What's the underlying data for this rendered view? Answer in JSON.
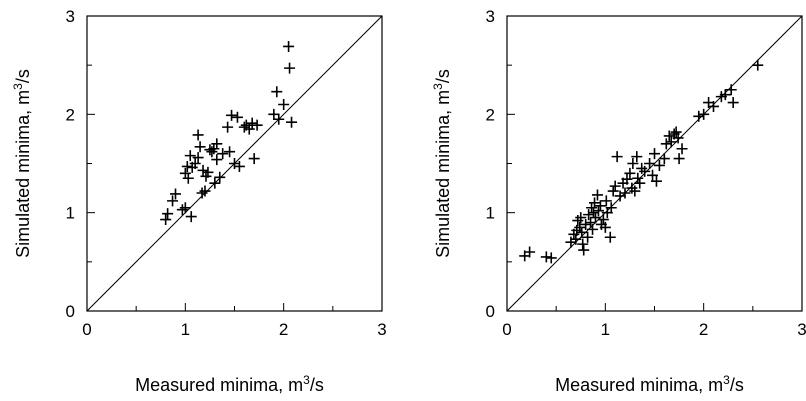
{
  "chart_data": [
    {
      "type": "scatter",
      "xlabel": "Measured minima, m³/s",
      "ylabel": "Simulated minima, m³/s",
      "xlim": [
        0,
        3
      ],
      "ylim": [
        0,
        3
      ],
      "xticks": [
        "0",
        "1",
        "2",
        "3"
      ],
      "yticks": [
        "0",
        "1",
        "2",
        "3"
      ],
      "reference_line": "1:1",
      "marker": "plus",
      "points": [
        [
          0.8,
          0.93
        ],
        [
          0.82,
          0.99
        ],
        [
          0.87,
          1.12
        ],
        [
          0.9,
          1.19
        ],
        [
          0.97,
          1.03
        ],
        [
          1.0,
          1.05
        ],
        [
          1.0,
          1.4
        ],
        [
          1.02,
          1.47
        ],
        [
          1.03,
          1.35
        ],
        [
          1.05,
          1.58
        ],
        [
          1.06,
          0.96
        ],
        [
          1.07,
          1.46
        ],
        [
          1.1,
          1.5
        ],
        [
          1.13,
          1.56
        ],
        [
          1.13,
          1.79
        ],
        [
          1.15,
          1.67
        ],
        [
          1.17,
          1.2
        ],
        [
          1.18,
          1.43
        ],
        [
          1.2,
          1.22
        ],
        [
          1.21,
          1.37
        ],
        [
          1.23,
          1.41
        ],
        [
          1.25,
          1.64
        ],
        [
          1.27,
          1.62
        ],
        [
          1.29,
          1.65
        ],
        [
          1.3,
          1.3
        ],
        [
          1.32,
          1.7
        ],
        [
          1.32,
          1.54
        ],
        [
          1.35,
          1.36
        ],
        [
          1.38,
          1.6
        ],
        [
          1.43,
          1.87
        ],
        [
          1.45,
          1.62
        ],
        [
          1.47,
          1.99
        ],
        [
          1.5,
          1.5
        ],
        [
          1.53,
          1.97
        ],
        [
          1.55,
          1.47
        ],
        [
          1.6,
          1.87
        ],
        [
          1.62,
          1.89
        ],
        [
          1.65,
          1.85
        ],
        [
          1.68,
          1.91
        ],
        [
          1.7,
          1.55
        ],
        [
          1.73,
          1.89
        ],
        [
          1.9,
          2.0
        ],
        [
          1.93,
          2.23
        ],
        [
          1.95,
          1.95
        ],
        [
          2.0,
          2.1
        ],
        [
          2.05,
          2.69
        ],
        [
          2.06,
          2.47
        ],
        [
          2.08,
          1.92
        ]
      ]
    },
    {
      "type": "scatter",
      "xlabel": "Measured minima, m³/s",
      "ylabel": "Simulated minima, m³/s",
      "xlim": [
        0,
        3
      ],
      "ylim": [
        0,
        3
      ],
      "xticks": [
        "0",
        "1",
        "2",
        "3"
      ],
      "yticks": [
        "0",
        "1",
        "2",
        "3"
      ],
      "reference_line": "1:1",
      "marker": "plus",
      "points": [
        [
          0.18,
          0.56
        ],
        [
          0.23,
          0.6
        ],
        [
          0.4,
          0.55
        ],
        [
          0.45,
          0.54
        ],
        [
          0.65,
          0.7
        ],
        [
          0.68,
          0.78
        ],
        [
          0.7,
          0.73
        ],
        [
          0.71,
          0.82
        ],
        [
          0.72,
          0.92
        ],
        [
          0.74,
          0.85
        ],
        [
          0.75,
          0.95
        ],
        [
          0.76,
          0.8
        ],
        [
          0.77,
          0.68
        ],
        [
          0.78,
          0.62
        ],
        [
          0.8,
          0.88
        ],
        [
          0.82,
          0.75
        ],
        [
          0.83,
          0.98
        ],
        [
          0.85,
          0.9
        ],
        [
          0.86,
          1.05
        ],
        [
          0.87,
          0.83
        ],
        [
          0.88,
          1.0
        ],
        [
          0.89,
          1.1
        ],
        [
          0.9,
          0.95
        ],
        [
          0.92,
          1.18
        ],
        [
          0.93,
          1.02
        ],
        [
          0.95,
          1.07
        ],
        [
          0.96,
          0.88
        ],
        [
          0.98,
          0.93
        ],
        [
          1.0,
          0.85
        ],
        [
          1.01,
          1.12
        ],
        [
          1.02,
          1.0
        ],
        [
          1.05,
          0.75
        ],
        [
          1.06,
          1.05
        ],
        [
          1.08,
          1.22
        ],
        [
          1.1,
          1.27
        ],
        [
          1.12,
          1.57
        ],
        [
          1.15,
          1.17
        ],
        [
          1.18,
          1.3
        ],
        [
          1.2,
          1.2
        ],
        [
          1.22,
          1.34
        ],
        [
          1.25,
          1.4
        ],
        [
          1.27,
          1.25
        ],
        [
          1.28,
          1.5
        ],
        [
          1.3,
          1.22
        ],
        [
          1.32,
          1.57
        ],
        [
          1.33,
          1.35
        ],
        [
          1.35,
          1.3
        ],
        [
          1.37,
          1.45
        ],
        [
          1.4,
          1.42
        ],
        [
          1.45,
          1.5
        ],
        [
          1.48,
          1.38
        ],
        [
          1.5,
          1.6
        ],
        [
          1.52,
          1.32
        ],
        [
          1.55,
          1.48
        ],
        [
          1.6,
          1.55
        ],
        [
          1.62,
          1.7
        ],
        [
          1.65,
          1.78
        ],
        [
          1.67,
          1.72
        ],
        [
          1.7,
          1.8
        ],
        [
          1.72,
          1.82
        ],
        [
          1.74,
          1.76
        ],
        [
          1.75,
          1.55
        ],
        [
          1.78,
          1.65
        ],
        [
          1.95,
          1.98
        ],
        [
          2.0,
          2.0
        ],
        [
          2.05,
          2.12
        ],
        [
          2.1,
          2.08
        ],
        [
          2.18,
          2.18
        ],
        [
          2.22,
          2.2
        ],
        [
          2.28,
          2.25
        ],
        [
          2.3,
          2.12
        ],
        [
          2.55,
          2.5
        ]
      ]
    }
  ]
}
